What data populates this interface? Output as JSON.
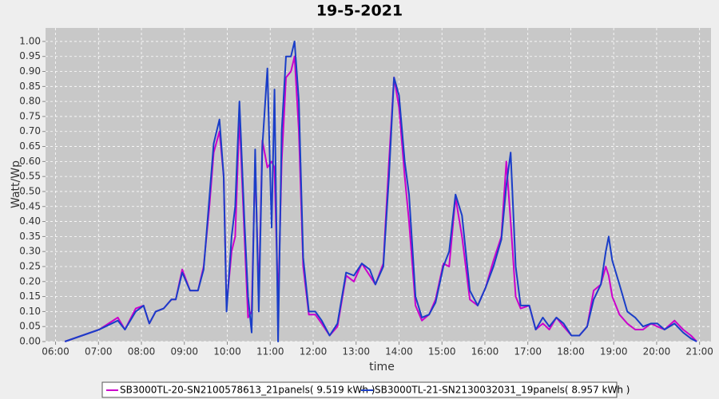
{
  "chart_data": {
    "type": "line",
    "title": "19-5-2021",
    "x_label": "time",
    "y_label": "Watt/Wp",
    "x": [
      "06:13",
      "07:01",
      "07:27",
      "07:37",
      "07:52",
      "08:03",
      "08:11",
      "08:20",
      "08:31",
      "08:42",
      "08:48",
      "08:57",
      "09:08",
      "09:19",
      "09:27",
      "09:35",
      "09:41",
      "09:49",
      "09:55",
      "09:59",
      "10:06",
      "10:11",
      "10:17",
      "10:24",
      "10:29",
      "10:34",
      "10:39",
      "10:44",
      "10:49",
      "10:56",
      "11:02",
      "11:06",
      "11:11",
      "11:16",
      "11:22",
      "11:29",
      "11:34",
      "11:40",
      "11:46",
      "11:54",
      "12:03",
      "12:12",
      "12:23",
      "12:34",
      "12:46",
      "12:57",
      "13:08",
      "13:19",
      "13:27",
      "13:38",
      "13:46",
      "13:53",
      "14:00",
      "14:08",
      "14:14",
      "14:23",
      "14:32",
      "14:42",
      "14:51",
      "15:02",
      "15:10",
      "15:19",
      "15:28",
      "15:39",
      "15:50",
      "16:01",
      "16:12",
      "16:23",
      "16:30",
      "16:36",
      "16:43",
      "16:50",
      "17:02",
      "17:11",
      "17:21",
      "17:30",
      "17:40",
      "17:50",
      "18:01",
      "18:12",
      "18:23",
      "18:32",
      "18:42",
      "18:49",
      "18:53",
      "18:58",
      "19:08",
      "19:19",
      "19:30",
      "19:41",
      "19:52",
      "20:01",
      "20:11",
      "20:25",
      "20:37",
      "20:48",
      "20:56"
    ],
    "series": [
      {
        "name": "SB3000TL-20-SN2100578613_21panels( 9.519 kWh )",
        "color": "#cc00cc",
        "values": [
          0,
          0.04,
          0.08,
          0.04,
          0.11,
          0.12,
          0.06,
          0.1,
          0.11,
          0.14,
          0.14,
          0.24,
          0.17,
          0.17,
          0.25,
          0.45,
          0.63,
          0.7,
          0.55,
          0.12,
          0.3,
          0.35,
          0.75,
          0.35,
          0.08,
          0.1,
          0.6,
          0.15,
          0.67,
          0.58,
          0.6,
          0.58,
          0.12,
          0.6,
          0.88,
          0.9,
          0.95,
          0.7,
          0.25,
          0.09,
          0.09,
          0.06,
          0.02,
          0.05,
          0.22,
          0.2,
          0.26,
          0.22,
          0.19,
          0.26,
          0.6,
          0.88,
          0.78,
          0.55,
          0.4,
          0.12,
          0.07,
          0.09,
          0.14,
          0.26,
          0.25,
          0.48,
          0.35,
          0.14,
          0.12,
          0.18,
          0.27,
          0.35,
          0.6,
          0.4,
          0.15,
          0.11,
          0.12,
          0.04,
          0.06,
          0.04,
          0.08,
          0.05,
          0.02,
          0.02,
          0.05,
          0.17,
          0.19,
          0.25,
          0.22,
          0.15,
          0.09,
          0.06,
          0.04,
          0.04,
          0.06,
          0.05,
          0.04,
          0.07,
          0.04,
          0.02,
          0
        ]
      },
      {
        "name": "SB3000TL-21-SN2130032031_19panels( 8.957 kWh )",
        "color": "#1a3ec8",
        "values": [
          0,
          0.04,
          0.07,
          0.04,
          0.1,
          0.12,
          0.06,
          0.1,
          0.11,
          0.14,
          0.14,
          0.23,
          0.17,
          0.17,
          0.24,
          0.48,
          0.66,
          0.74,
          0.55,
          0.1,
          0.35,
          0.45,
          0.8,
          0.4,
          0.15,
          0.03,
          0.64,
          0.1,
          0.65,
          0.91,
          0.38,
          0.84,
          0,
          0.7,
          0.95,
          0.95,
          1.0,
          0.8,
          0.28,
          0.1,
          0.1,
          0.07,
          0.02,
          0.06,
          0.23,
          0.22,
          0.26,
          0.24,
          0.19,
          0.25,
          0.55,
          0.88,
          0.82,
          0.6,
          0.49,
          0.15,
          0.08,
          0.09,
          0.13,
          0.25,
          0.3,
          0.49,
          0.42,
          0.17,
          0.12,
          0.18,
          0.25,
          0.34,
          0.52,
          0.63,
          0.25,
          0.12,
          0.12,
          0.04,
          0.08,
          0.05,
          0.08,
          0.06,
          0.02,
          0.02,
          0.05,
          0.14,
          0.19,
          0.3,
          0.35,
          0.27,
          0.19,
          0.1,
          0.08,
          0.05,
          0.06,
          0.06,
          0.04,
          0.06,
          0.03,
          0.01,
          0
        ]
      }
    ],
    "xlim": [
      "05:46",
      "21:16"
    ],
    "xticks": [
      "06:00",
      "07:00",
      "08:00",
      "09:00",
      "10:00",
      "11:00",
      "12:00",
      "13:00",
      "14:00",
      "15:00",
      "16:00",
      "17:00",
      "18:00",
      "19:00",
      "20:00",
      "21:00"
    ],
    "ylim": [
      0,
      1.045
    ],
    "yticks": [
      {
        "value": 0,
        "label": "0.00"
      },
      0.05,
      {
        "value": 0.1,
        "label": "0.10"
      },
      0.15,
      {
        "value": 0.2,
        "label": "0.20"
      },
      0.25,
      {
        "value": 0.3,
        "label": "0.30"
      },
      0.35,
      {
        "value": 0.4,
        "label": "0.40"
      },
      0.45,
      {
        "value": 0.5,
        "label": "0.50"
      },
      0.55,
      {
        "value": 0.6,
        "label": "0.60"
      },
      0.65,
      {
        "value": 0.7,
        "label": "0.70"
      },
      0.75,
      {
        "value": 0.8,
        "label": "0.80"
      },
      0.85,
      {
        "value": 0.9,
        "label": "0.90"
      },
      0.95,
      {
        "value": 1,
        "label": "1.00"
      }
    ],
    "grid": true,
    "legend": "bottom"
  }
}
